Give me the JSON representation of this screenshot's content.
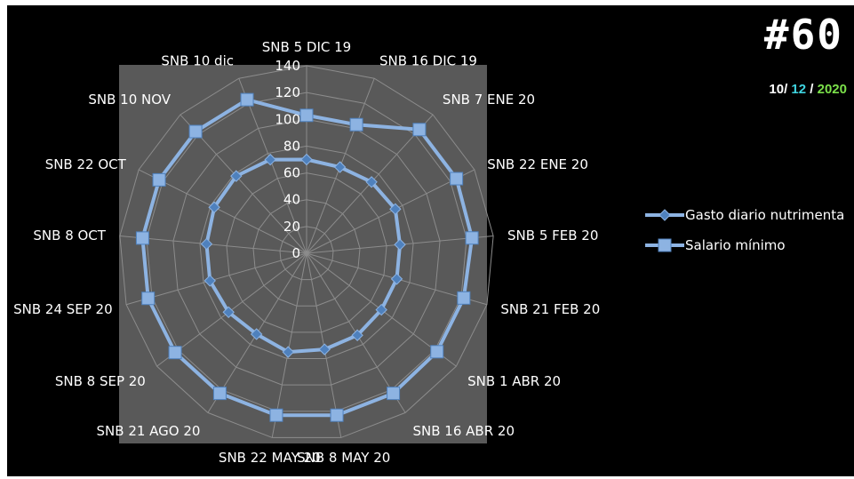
{
  "badge": {
    "text": "#60"
  },
  "date": {
    "day": "10",
    "sep1": "/ ",
    "month": "12",
    "sep2": " / ",
    "year": "2020",
    "colors": {
      "day": "#ffffff",
      "month": "#3fd4e0",
      "year": "#7be04a",
      "sep": "#ffffff"
    }
  },
  "colors": {
    "plot_bg": "#595959",
    "grid": "#8c8c8c",
    "series": "#8db3e2",
    "series_stroke": "#4f81bd"
  },
  "chart_data": {
    "type": "radar",
    "categories": [
      "SNB 5 DIC 19",
      "SNB 16 DIC 19",
      "SNB 7 ENE 20",
      "SNB 22 ENE 20",
      "SNB 5 FEB 20",
      "SNB 21 FEB 20",
      "SNB 1 ABR 20",
      "SNB 16 ABR 20",
      "SNB 8 MAY 20",
      "SNB 22 MAY 20",
      "SNB 21 AGO 20",
      "SNB 8 SEP 20",
      "SNB 24 SEP 20",
      "SNB 8 OCT",
      "SNB 22 OCT",
      "SNB 10 NOV",
      "SNB 10 dic"
    ],
    "series": [
      {
        "name": "Gasto diario nutrimenta",
        "marker": "diamond",
        "values": [
          70,
          69,
          72,
          74,
          70,
          70,
          70,
          72,
          73,
          75,
          71,
          73,
          75,
          75,
          77,
          78,
          75
        ]
      },
      {
        "name": "Salario mínimo",
        "marker": "square",
        "values": [
          103,
          103,
          125,
          125,
          124,
          122,
          122,
          123,
          123,
          123,
          123,
          123,
          123,
          123,
          123,
          123,
          123
        ]
      }
    ],
    "r_ticks": [
      0,
      20,
      40,
      60,
      80,
      100,
      120,
      140
    ],
    "r_range": [
      0,
      140
    ],
    "legend_position": "right",
    "grid": true
  }
}
